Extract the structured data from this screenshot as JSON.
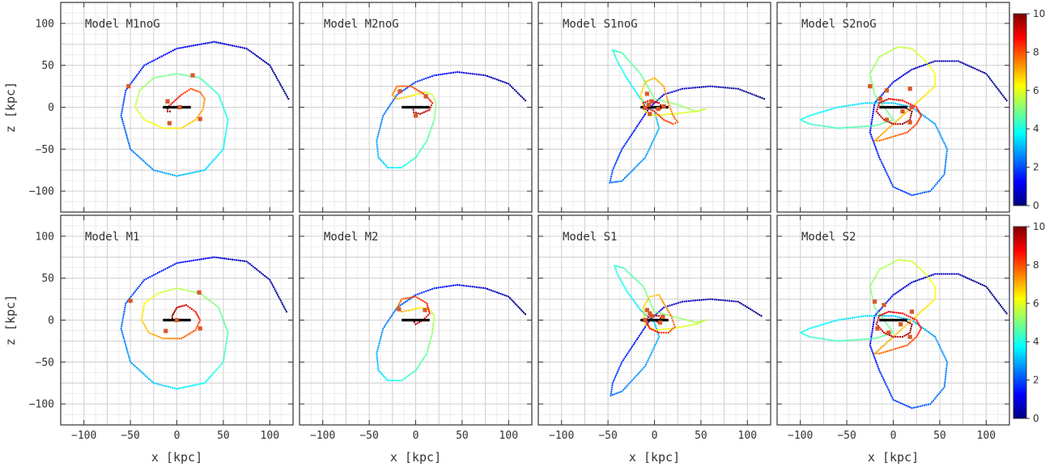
{
  "chart_data": {
    "type": "scatter",
    "layout": "2 rows x 4 columns of panels",
    "xlabel": "x [kpc]",
    "ylabel": "z [kpc]",
    "xlim": [
      -125,
      125
    ],
    "ylim": [
      -125,
      125
    ],
    "xticks": [
      -100,
      -50,
      0,
      50,
      100
    ],
    "yticks": [
      -100,
      -50,
      0,
      50,
      100
    ],
    "grid": true,
    "colorbar": {
      "range": [
        0,
        10
      ],
      "ticks": [
        0,
        2,
        4,
        6,
        8,
        10
      ],
      "colormap": "jet"
    },
    "bar_segment": [
      [
        -15,
        0
      ],
      [
        15,
        0
      ]
    ],
    "panels": [
      {
        "title": "Model M1noG",
        "orbit": {
          "x": [
            120,
            100,
            75,
            40,
            0,
            -35,
            -55,
            -60,
            -50,
            -25,
            0,
            30,
            50,
            55,
            45,
            25,
            0,
            -25,
            -40,
            -45,
            -35,
            -15,
            5,
            20,
            28,
            30,
            25,
            15,
            5,
            -5,
            -10,
            -10,
            -5
          ],
          "z": [
            10,
            50,
            70,
            78,
            70,
            50,
            20,
            -10,
            -50,
            -75,
            -82,
            -75,
            -50,
            -15,
            15,
            35,
            40,
            35,
            20,
            0,
            -15,
            -25,
            -25,
            -15,
            -3,
            10,
            18,
            22,
            15,
            5,
            0,
            -5,
            -5
          ],
          "t": [
            0,
            0.3,
            0.6,
            0.9,
            1.2,
            1.5,
            1.8,
            2.1,
            2.4,
            2.7,
            3,
            3.3,
            3.6,
            3.9,
            4.2,
            4.5,
            4.8,
            5.1,
            5.4,
            5.7,
            6,
            6.3,
            6.6,
            6.9,
            7.2,
            7.5,
            7.8,
            8.1,
            8.4,
            8.7,
            9,
            9.5,
            10
          ]
        },
        "markers": {
          "x": [
            -52,
            17,
            -10,
            -8,
            25,
            3
          ],
          "z": [
            25,
            38,
            7,
            -19,
            -14,
            0
          ]
        }
      },
      {
        "title": "Model M2noG",
        "orbit": {
          "x": [
            118,
            100,
            75,
            45,
            20,
            0,
            -20,
            -35,
            -42,
            -40,
            -30,
            -15,
            0,
            12,
            20,
            22,
            18,
            10,
            0,
            -10,
            -20,
            -25,
            -20,
            -5,
            10,
            18,
            15,
            5,
            -2,
            -3
          ],
          "z": [
            8,
            28,
            38,
            42,
            38,
            30,
            15,
            -10,
            -40,
            -60,
            -72,
            -72,
            -60,
            -40,
            -15,
            5,
            15,
            18,
            15,
            12,
            10,
            15,
            25,
            25,
            15,
            5,
            -3,
            -8,
            -6,
            0
          ],
          "t": [
            0,
            0.35,
            0.7,
            1.05,
            1.4,
            1.75,
            2.1,
            2.45,
            2.8,
            3.15,
            3.5,
            3.85,
            4.2,
            4.55,
            4.9,
            5.25,
            5.6,
            5.95,
            6.3,
            6.65,
            7,
            7.35,
            7.7,
            8.05,
            8.4,
            8.75,
            9.1,
            9.45,
            9.8,
            10
          ]
        },
        "markers": {
          "x": [
            -17,
            11,
            0
          ],
          "z": [
            19,
            13,
            -10
          ]
        }
      },
      {
        "title": "Model S1noG",
        "orbit": {
          "x": [
            118,
            90,
            60,
            30,
            10,
            -5,
            -20,
            -35,
            -45,
            -48,
            -35,
            -10,
            5,
            0,
            -15,
            -30,
            -40,
            -45,
            -35,
            -15,
            0,
            25,
            45,
            55,
            45,
            20,
            0,
            -10,
            -15,
            -10,
            0,
            10,
            15,
            20,
            25,
            20,
            10,
            0,
            -10,
            -12,
            -5,
            5,
            8,
            5,
            0
          ],
          "z": [
            10,
            22,
            25,
            22,
            15,
            0,
            -25,
            -50,
            -75,
            -90,
            -88,
            -60,
            -25,
            -5,
            10,
            35,
            55,
            68,
            65,
            40,
            10,
            3,
            -5,
            -2,
            -5,
            -8,
            -10,
            -5,
            15,
            30,
            35,
            25,
            5,
            -10,
            -18,
            -20,
            -15,
            -5,
            0,
            5,
            8,
            5,
            0,
            -3,
            0
          ],
          "t": [
            0,
            0.25,
            0.5,
            0.75,
            1,
            1.25,
            1.5,
            1.75,
            2,
            2.25,
            2.5,
            2.75,
            3,
            3.25,
            3.5,
            3.75,
            4,
            4.25,
            4.5,
            4.75,
            5,
            5.2,
            5.4,
            5.6,
            5.8,
            6,
            6.2,
            6.4,
            6.6,
            6.8,
            7,
            7.2,
            7.4,
            7.6,
            7.8,
            8,
            8.2,
            8.4,
            8.6,
            8.8,
            9,
            9.2,
            9.5,
            9.8,
            10
          ]
        },
        "markers": {
          "x": [
            -8,
            -3,
            -10,
            -5,
            4,
            -6,
            10
          ],
          "z": [
            16,
            7,
            -1,
            -8,
            -2,
            3,
            1
          ]
        }
      },
      {
        "title": "S2noG",
        "title_prefix": "Model",
        "orbit": {
          "x": [
            122,
            100,
            70,
            45,
            20,
            0,
            -20,
            -25,
            -15,
            0,
            20,
            40,
            55,
            58,
            45,
            20,
            0,
            -30,
            -60,
            -90,
            -100,
            -90,
            -60,
            -20,
            0,
            -20,
            -25,
            -15,
            5,
            20,
            35,
            45,
            45,
            30,
            10,
            -5,
            -15,
            -20,
            -15,
            0,
            15,
            25,
            30,
            25,
            10,
            -5,
            -15,
            -18,
            -10,
            0,
            10,
            18,
            20,
            12,
            0
          ],
          "z": [
            8,
            40,
            55,
            55,
            45,
            30,
            5,
            -30,
            -60,
            -95,
            -105,
            -100,
            -80,
            -50,
            -20,
            0,
            5,
            5,
            0,
            -10,
            -15,
            -20,
            -25,
            -22,
            -15,
            15,
            40,
            60,
            72,
            70,
            55,
            40,
            25,
            10,
            -10,
            -25,
            -35,
            -40,
            -40,
            -35,
            -30,
            -20,
            -10,
            0,
            8,
            10,
            5,
            -5,
            -15,
            -20,
            -20,
            -15,
            -5,
            0,
            0
          ],
          "t": [
            0,
            0.2,
            0.4,
            0.6,
            0.8,
            1,
            1.2,
            1.4,
            1.6,
            1.8,
            2,
            2.2,
            2.4,
            2.6,
            2.8,
            3,
            3.2,
            3.4,
            3.6,
            3.8,
            4,
            4.2,
            4.4,
            4.6,
            4.8,
            5,
            5.2,
            5.4,
            5.6,
            5.8,
            6,
            6.2,
            6.4,
            6.6,
            6.8,
            7,
            7.2,
            7.4,
            7.6,
            7.8,
            8,
            8.2,
            8.4,
            8.6,
            8.8,
            9,
            9.2,
            9.3,
            9.4,
            9.5,
            9.6,
            9.7,
            9.8,
            9.9,
            10
          ]
        },
        "markers": {
          "x": [
            -25,
            -7,
            18,
            20,
            -14,
            -7,
            10,
            18
          ],
          "z": [
            25,
            20,
            22,
            0,
            10,
            -15,
            -5,
            -18
          ]
        }
      },
      {
        "title": "Model M1",
        "orbit": {
          "x": [
            118,
            100,
            75,
            40,
            0,
            -35,
            -55,
            -60,
            -50,
            -25,
            0,
            30,
            50,
            55,
            45,
            25,
            0,
            -20,
            -35,
            -38,
            -30,
            -15,
            5,
            20,
            25,
            20,
            10,
            0,
            -5,
            -5
          ],
          "z": [
            10,
            48,
            70,
            75,
            68,
            48,
            20,
            -10,
            -50,
            -75,
            -82,
            -75,
            -50,
            -15,
            15,
            32,
            38,
            32,
            20,
            0,
            -15,
            -22,
            -22,
            -12,
            0,
            10,
            18,
            15,
            5,
            0
          ],
          "t": [
            0,
            0.35,
            0.7,
            1.05,
            1.4,
            1.75,
            2.1,
            2.45,
            2.8,
            3.15,
            3.5,
            3.85,
            4.2,
            4.55,
            4.9,
            5.25,
            5.6,
            5.95,
            6.3,
            6.65,
            7,
            7.35,
            7.7,
            8.05,
            8.4,
            8.75,
            9.1,
            9.45,
            9.8,
            10
          ]
        },
        "markers": {
          "x": [
            -50,
            24,
            -12,
            25,
            0
          ],
          "z": [
            23,
            33,
            -13,
            -10,
            0
          ]
        }
      },
      {
        "title": "Model M2",
        "orbit": {
          "x": [
            118,
            100,
            75,
            45,
            20,
            0,
            -20,
            -35,
            -42,
            -40,
            -30,
            -15,
            0,
            12,
            18,
            20,
            15,
            5,
            -5,
            -15,
            -20,
            -15,
            0,
            12,
            15,
            8,
            0,
            -3
          ],
          "z": [
            7,
            28,
            38,
            42,
            38,
            30,
            15,
            -10,
            -40,
            -60,
            -72,
            -72,
            -60,
            -40,
            -15,
            5,
            13,
            15,
            12,
            10,
            15,
            25,
            28,
            20,
            8,
            0,
            -5,
            0
          ],
          "t": [
            0,
            0.37,
            0.74,
            1.11,
            1.48,
            1.85,
            2.22,
            2.59,
            2.96,
            3.33,
            3.7,
            4.07,
            4.44,
            4.81,
            5.18,
            5.55,
            5.92,
            6.29,
            6.66,
            7.03,
            7.4,
            7.77,
            8.14,
            8.51,
            8.88,
            9.25,
            9.62,
            10
          ]
        },
        "markers": {
          "x": [
            -18,
            10
          ],
          "z": [
            13,
            12
          ]
        }
      },
      {
        "title": "Model S1",
        "orbit": {
          "x": [
            115,
            90,
            60,
            30,
            10,
            -5,
            -20,
            -35,
            -45,
            -47,
            -35,
            -10,
            5,
            0,
            -15,
            -30,
            -40,
            -43,
            -33,
            -12,
            0,
            25,
            45,
            55,
            45,
            20,
            0,
            -10,
            -12,
            -5,
            5,
            10,
            18,
            22,
            15,
            5,
            -5,
            -10,
            -5,
            5,
            8,
            5,
            0
          ],
          "z": [
            5,
            22,
            25,
            22,
            15,
            0,
            -25,
            -50,
            -75,
            -90,
            -85,
            -55,
            -20,
            -3,
            12,
            35,
            55,
            65,
            62,
            40,
            10,
            3,
            -3,
            0,
            -5,
            -10,
            -12,
            -5,
            15,
            28,
            30,
            20,
            5,
            -8,
            -15,
            -15,
            -10,
            0,
            5,
            5,
            0,
            -3,
            0
          ],
          "t": [
            0,
            0.25,
            0.5,
            0.75,
            1,
            1.25,
            1.5,
            1.75,
            2,
            2.25,
            2.5,
            2.75,
            3,
            3.25,
            3.5,
            3.75,
            4,
            4.25,
            4.5,
            4.75,
            5,
            5.2,
            5.4,
            5.6,
            5.8,
            6,
            6.2,
            6.4,
            6.6,
            6.8,
            7,
            7.3,
            7.6,
            7.9,
            8.2,
            8.5,
            8.8,
            9,
            9.2,
            9.4,
            9.6,
            9.8,
            10
          ]
        },
        "markers": {
          "x": [
            -8,
            -3,
            -10,
            6,
            -5,
            9
          ],
          "z": [
            12,
            5,
            0,
            -3,
            8,
            4
          ]
        }
      },
      {
        "title": "Model S2",
        "orbit": {
          "x": [
            122,
            100,
            70,
            45,
            20,
            0,
            -20,
            -25,
            -15,
            0,
            20,
            40,
            55,
            58,
            45,
            20,
            0,
            -30,
            -60,
            -90,
            -100,
            -90,
            -60,
            -20,
            0,
            -20,
            -25,
            -15,
            5,
            20,
            35,
            45,
            45,
            30,
            10,
            -5,
            -15,
            -20,
            -15,
            0,
            15,
            25,
            30,
            25,
            10,
            -5,
            -15,
            -18,
            -10,
            0,
            10,
            18,
            20,
            12,
            0
          ],
          "z": [
            8,
            40,
            55,
            55,
            45,
            30,
            5,
            -30,
            -60,
            -95,
            -105,
            -100,
            -80,
            -50,
            -20,
            0,
            5,
            5,
            0,
            -10,
            -15,
            -20,
            -25,
            -22,
            -15,
            15,
            40,
            60,
            72,
            70,
            55,
            40,
            25,
            10,
            -10,
            -25,
            -35,
            -40,
            -40,
            -35,
            -30,
            -20,
            -10,
            0,
            8,
            10,
            5,
            -5,
            -15,
            -20,
            -20,
            -15,
            -5,
            0,
            0
          ],
          "t": [
            0,
            0.2,
            0.4,
            0.6,
            0.8,
            1,
            1.2,
            1.4,
            1.6,
            1.8,
            2,
            2.2,
            2.4,
            2.6,
            2.8,
            3,
            3.2,
            3.4,
            3.6,
            3.8,
            4,
            4.2,
            4.4,
            4.6,
            4.8,
            5,
            5.2,
            5.4,
            5.6,
            5.8,
            6,
            6.2,
            6.4,
            6.6,
            6.8,
            7,
            7.2,
            7.4,
            7.6,
            7.8,
            8,
            8.2,
            8.4,
            8.6,
            8.8,
            9,
            9.2,
            9.3,
            9.4,
            9.5,
            9.6,
            9.7,
            9.8,
            9.9,
            10
          ]
        },
        "markers": {
          "x": [
            -20,
            -10,
            20,
            18,
            -17,
            -5,
            8
          ],
          "z": [
            22,
            18,
            10,
            -20,
            -10,
            -15,
            -5
          ]
        }
      }
    ]
  }
}
